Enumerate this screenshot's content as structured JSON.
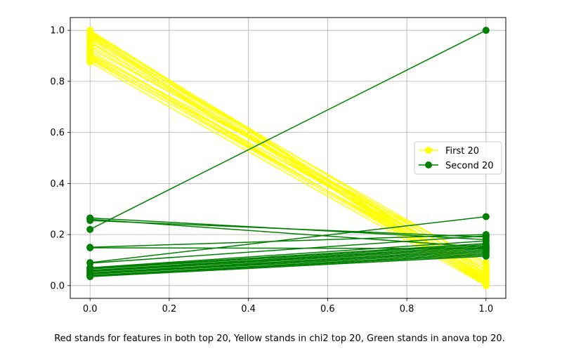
{
  "chart_data": {
    "type": "line",
    "title": "",
    "xlabel": "",
    "ylabel": "",
    "xlim": [
      -0.05,
      1.05
    ],
    "ylim": [
      -0.05,
      1.05
    ],
    "xticks": [
      0.0,
      0.2,
      0.4,
      0.6,
      0.8,
      1.0
    ],
    "xtick_labels": [
      "0.0",
      "0.2",
      "0.4",
      "0.6",
      "0.8",
      "1.0"
    ],
    "yticks": [
      0.0,
      0.2,
      0.4,
      0.6,
      0.8,
      1.0
    ],
    "ytick_labels": [
      "0.0",
      "0.2",
      "0.4",
      "0.6",
      "0.8",
      "1.0"
    ],
    "grid": true,
    "legend_position": "center-right",
    "legend": [
      {
        "label": "First 20",
        "color": "#ffff00"
      },
      {
        "label": "Second 20",
        "color": "#008000"
      }
    ],
    "caption": "Red stands for features in both top 20, Yellow stands in chi2 top 20, Green stands in anova top 20.",
    "series": [
      {
        "name": "First 20",
        "color": "#ffff00",
        "x": [
          0,
          1
        ],
        "y": [
          1.0,
          0.03
        ]
      },
      {
        "color": "#ffff00",
        "x": [
          0,
          1
        ],
        "y": [
          0.995,
          0.02
        ]
      },
      {
        "color": "#ffff00",
        "x": [
          0,
          1
        ],
        "y": [
          0.99,
          0.06
        ]
      },
      {
        "color": "#ffff00",
        "x": [
          0,
          1
        ],
        "y": [
          0.985,
          0.01
        ]
      },
      {
        "color": "#ffff00",
        "x": [
          0,
          1
        ],
        "y": [
          0.98,
          0.045
        ]
      },
      {
        "color": "#ffff00",
        "x": [
          0,
          1
        ],
        "y": [
          0.975,
          0.0
        ]
      },
      {
        "color": "#ffff00",
        "x": [
          0,
          1
        ],
        "y": [
          0.97,
          0.08
        ]
      },
      {
        "color": "#ffff00",
        "x": [
          0,
          1
        ],
        "y": [
          0.965,
          0.025
        ]
      },
      {
        "color": "#ffff00",
        "x": [
          0,
          1
        ],
        "y": [
          0.955,
          0.015
        ]
      },
      {
        "color": "#ffff00",
        "x": [
          0,
          1
        ],
        "y": [
          0.95,
          0.05
        ]
      },
      {
        "color": "#ffff00",
        "x": [
          0,
          1
        ],
        "y": [
          0.94,
          0.035
        ]
      },
      {
        "color": "#ffff00",
        "x": [
          0,
          1
        ],
        "y": [
          0.93,
          0.07
        ]
      },
      {
        "color": "#ffff00",
        "x": [
          0,
          1
        ],
        "y": [
          0.92,
          0.005
        ]
      },
      {
        "color": "#ffff00",
        "x": [
          0,
          1
        ],
        "y": [
          0.91,
          0.04
        ]
      },
      {
        "color": "#ffff00",
        "x": [
          0,
          1
        ],
        "y": [
          0.905,
          0.09
        ]
      },
      {
        "color": "#ffff00",
        "x": [
          0,
          1
        ],
        "y": [
          0.9,
          0.02
        ]
      },
      {
        "color": "#ffff00",
        "x": [
          0,
          1
        ],
        "y": [
          0.895,
          0.06
        ]
      },
      {
        "color": "#ffff00",
        "x": [
          0,
          1
        ],
        "y": [
          0.89,
          0.01
        ]
      },
      {
        "color": "#ffff00",
        "x": [
          0,
          1
        ],
        "y": [
          0.885,
          0.03
        ]
      },
      {
        "color": "#ffff00",
        "x": [
          0,
          1
        ],
        "y": [
          0.875,
          0.0
        ]
      },
      {
        "name": "Second 20",
        "color": "#008000",
        "x": [
          0,
          1
        ],
        "y": [
          0.22,
          1.0
        ]
      },
      {
        "color": "#008000",
        "x": [
          0,
          1
        ],
        "y": [
          0.265,
          0.18
        ]
      },
      {
        "color": "#008000",
        "x": [
          0,
          1
        ],
        "y": [
          0.26,
          0.15
        ]
      },
      {
        "color": "#008000",
        "x": [
          0,
          1
        ],
        "y": [
          0.255,
          0.19
        ]
      },
      {
        "color": "#008000",
        "x": [
          0,
          1
        ],
        "y": [
          0.15,
          0.2
        ]
      },
      {
        "color": "#008000",
        "x": [
          0,
          1
        ],
        "y": [
          0.148,
          0.145
        ]
      },
      {
        "color": "#008000",
        "x": [
          0,
          1
        ],
        "y": [
          0.09,
          0.27
        ]
      },
      {
        "color": "#008000",
        "x": [
          0,
          1
        ],
        "y": [
          0.088,
          0.195
        ]
      },
      {
        "color": "#008000",
        "x": [
          0,
          1
        ],
        "y": [
          0.07,
          0.175
        ]
      },
      {
        "color": "#008000",
        "x": [
          0,
          1
        ],
        "y": [
          0.068,
          0.165
        ]
      },
      {
        "color": "#008000",
        "x": [
          0,
          1
        ],
        "y": [
          0.065,
          0.16
        ]
      },
      {
        "color": "#008000",
        "x": [
          0,
          1
        ],
        "y": [
          0.06,
          0.155
        ]
      },
      {
        "color": "#008000",
        "x": [
          0,
          1
        ],
        "y": [
          0.058,
          0.15
        ]
      },
      {
        "color": "#008000",
        "x": [
          0,
          1
        ],
        "y": [
          0.055,
          0.145
        ]
      },
      {
        "color": "#008000",
        "x": [
          0,
          1
        ],
        "y": [
          0.05,
          0.14
        ]
      },
      {
        "color": "#008000",
        "x": [
          0,
          1
        ],
        "y": [
          0.048,
          0.135
        ]
      },
      {
        "color": "#008000",
        "x": [
          0,
          1
        ],
        "y": [
          0.045,
          0.13
        ]
      },
      {
        "color": "#008000",
        "x": [
          0,
          1
        ],
        "y": [
          0.04,
          0.125
        ]
      },
      {
        "color": "#008000",
        "x": [
          0,
          1
        ],
        "y": [
          0.038,
          0.12
        ]
      },
      {
        "color": "#008000",
        "x": [
          0,
          1
        ],
        "y": [
          0.035,
          0.115
        ]
      }
    ]
  }
}
